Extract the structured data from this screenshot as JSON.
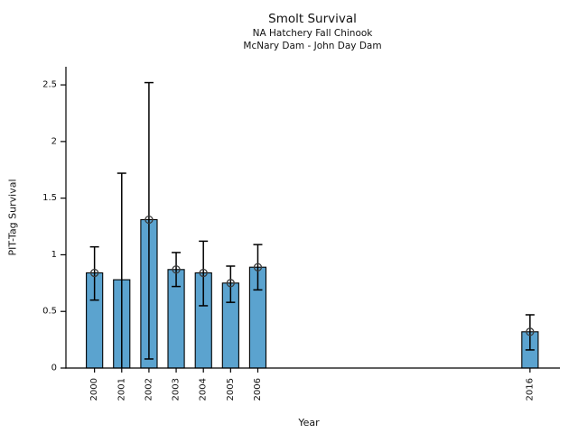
{
  "figure": {
    "title": "Smolt Survival",
    "subtitle1": "NA Hatchery Fall Chinook",
    "subtitle2": "McNary Dam - John Day Dam",
    "xlabel": "Year",
    "ylabel": "PIT-Tag Survival"
  },
  "chart_data": {
    "type": "bar",
    "title": "Smolt Survival",
    "subtitle": [
      "NA Hatchery Fall Chinook",
      "McNary Dam - John Day Dam"
    ],
    "xlabel": "Year",
    "ylabel": "PIT-Tag Survival",
    "categories": [
      "2000",
      "2001",
      "2002",
      "2003",
      "2004",
      "2005",
      "2006",
      "2016"
    ],
    "x": [
      2000,
      2001,
      2002,
      2003,
      2004,
      2005,
      2006,
      2016
    ],
    "values": [
      0.84,
      0.78,
      1.31,
      0.87,
      0.84,
      0.75,
      0.89,
      0.32
    ],
    "error_high": [
      1.07,
      1.72,
      2.52,
      1.02,
      1.12,
      0.9,
      1.09,
      0.47
    ],
    "error_low": [
      0.6,
      0.0,
      0.08,
      0.72,
      0.55,
      0.58,
      0.69,
      0.16
    ],
    "point_marker": [
      true,
      false,
      true,
      true,
      true,
      true,
      true,
      true
    ],
    "lower_cap": [
      true,
      false,
      true,
      true,
      true,
      true,
      true,
      true
    ],
    "yticks": [
      0,
      0.5,
      1,
      1.5,
      2,
      2.5
    ],
    "ytick_labels": [
      "0",
      "0.5",
      "1",
      "1.5",
      "2",
      "2.5"
    ],
    "ylim": [
      0,
      2.66
    ],
    "xlim": [
      1998.95,
      2017.1
    ],
    "grid": false,
    "legend": false,
    "bar_width_years": 0.6,
    "bar_color": "#5ba3cf",
    "bar_edge_color": "#000000",
    "error_color": "#000000",
    "marker_color": "#3a3a3a",
    "axis_color": "#000000"
  }
}
